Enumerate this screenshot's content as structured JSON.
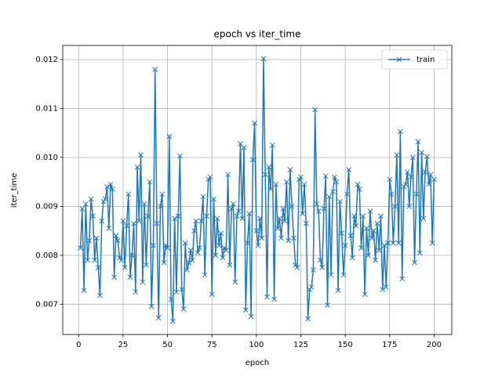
{
  "chart_data": {
    "type": "line",
    "title": "epoch vs iter_time",
    "x_label": "epoch",
    "y_label": "iter_time",
    "x": [
      1,
      2,
      3,
      4,
      5,
      6,
      7,
      8,
      9,
      10,
      11,
      12,
      13,
      14,
      15,
      16,
      17,
      18,
      19,
      20,
      21,
      22,
      23,
      24,
      25,
      26,
      27,
      28,
      29,
      30,
      31,
      32,
      33,
      34,
      35,
      36,
      37,
      38,
      39,
      40,
      41,
      42,
      43,
      44,
      45,
      46,
      47,
      48,
      49,
      50,
      51,
      52,
      53,
      54,
      55,
      56,
      57,
      58,
      59,
      60,
      61,
      62,
      63,
      64,
      65,
      66,
      67,
      68,
      69,
      70,
      71,
      72,
      73,
      74,
      75,
      76,
      77,
      78,
      79,
      80,
      81,
      82,
      83,
      84,
      85,
      86,
      87,
      88,
      89,
      90,
      91,
      92,
      93,
      94,
      95,
      96,
      97,
      98,
      99,
      100,
      101,
      102,
      103,
      104,
      105,
      106,
      107,
      108,
      109,
      110,
      111,
      112,
      113,
      114,
      115,
      116,
      117,
      118,
      119,
      120,
      121,
      122,
      123,
      124,
      125,
      126,
      127,
      128,
      129,
      130,
      131,
      132,
      133,
      134,
      135,
      136,
      137,
      138,
      139,
      140,
      141,
      142,
      143,
      144,
      145,
      146,
      147,
      148,
      149,
      150,
      151,
      152,
      153,
      154,
      155,
      156,
      157,
      158,
      159,
      160,
      161,
      162,
      163,
      164,
      165,
      166,
      167,
      168,
      169,
      170,
      171,
      172,
      173,
      174,
      175,
      176,
      177,
      178,
      179,
      180,
      181,
      182,
      183,
      184,
      185,
      186,
      187,
      188,
      189,
      190,
      191,
      192,
      193,
      194,
      195,
      196,
      197,
      198,
      199,
      200
    ],
    "series": [
      {
        "name": "train",
        "color": "#1f77b4",
        "marker": "x",
        "values": [
          0.00815,
          0.00895,
          0.00728,
          0.00905,
          0.0079,
          0.0083,
          0.00915,
          0.0088,
          0.0079,
          0.00835,
          0.00775,
          0.00718,
          0.0087,
          0.0091,
          0.00915,
          0.0094,
          0.00855,
          0.00945,
          0.00935,
          0.00755,
          0.0084,
          0.0083,
          0.00795,
          0.0079,
          0.0087,
          0.00775,
          0.0086,
          0.00925,
          0.00755,
          0.008,
          0.00865,
          0.00725,
          0.0098,
          0.0087,
          0.01005,
          0.00745,
          0.00905,
          0.0078,
          0.0088,
          0.0095,
          0.00695,
          0.0082,
          0.0118,
          0.00865,
          0.00672,
          0.009,
          0.00925,
          0.00785,
          0.0082,
          0.00815,
          0.01043,
          0.0071,
          0.00665,
          0.00875,
          0.00725,
          0.0088,
          0.01003,
          0.0073,
          0.0069,
          0.00825,
          0.0077,
          0.00785,
          0.0081,
          0.0079,
          0.0085,
          0.0087,
          0.00805,
          0.00815,
          0.0087,
          0.0092,
          0.0076,
          0.0088,
          0.00955,
          0.0096,
          0.0072,
          0.00915,
          0.008,
          0.00875,
          0.0082,
          0.00845,
          0.00795,
          0.00815,
          0.0081,
          0.00965,
          0.0078,
          0.00895,
          0.00905,
          0.00745,
          0.0088,
          0.0089,
          0.01028,
          0.00875,
          0.0102,
          0.00688,
          0.00825,
          0.00885,
          0.00675,
          0.00995,
          0.0107,
          0.0085,
          0.0082,
          0.00875,
          0.00835,
          0.01202,
          0.00965,
          0.00715,
          0.0098,
          0.00935,
          0.01025,
          0.0071,
          0.00945,
          0.00855,
          0.00875,
          0.00835,
          0.00895,
          0.0087,
          0.0095,
          0.0083,
          0.00975,
          0.009,
          0.00835,
          0.0078,
          0.00775,
          0.00955,
          0.0096,
          0.00885,
          0.00945,
          0.00865,
          0.0067,
          0.0073,
          0.00735,
          0.0077,
          0.01098,
          0.00905,
          0.0089,
          0.0079,
          0.00775,
          0.00895,
          0.00962,
          0.00698,
          0.0092,
          0.0076,
          0.0093,
          0.0096,
          0.0095,
          0.00728,
          0.0091,
          0.00845,
          0.0076,
          0.0082,
          0.00925,
          0.00975,
          0.0084,
          0.00795,
          0.0088,
          0.0086,
          0.00945,
          0.00935,
          0.00815,
          0.0088,
          0.0072,
          0.00855,
          0.008,
          0.0089,
          0.00835,
          0.0085,
          0.0079,
          0.00865,
          0.0081,
          0.0088,
          0.0073,
          0.0082,
          0.00735,
          0.00825,
          0.00955,
          0.00925,
          0.00825,
          0.009,
          0.01005,
          0.00825,
          0.01053,
          0.00752,
          0.0094,
          0.00945,
          0.0097,
          0.009,
          0.0096,
          0.01,
          0.00785,
          0.00925,
          0.01032,
          0.00805,
          0.0101,
          0.00875,
          0.0097,
          0.01002,
          0.00945,
          0.00965,
          0.00825,
          0.00955
        ]
      }
    ],
    "xlim": [
      -8.95,
      209.95
    ],
    "ylim": [
      0.00638,
      0.01229
    ],
    "xticks": [
      0,
      25,
      50,
      75,
      100,
      125,
      150,
      175,
      200
    ],
    "yticks": [
      0.007,
      0.008,
      0.009,
      {
        "value": 0.01,
        "label": "0.010"
      },
      0.011,
      0.012
    ],
    "grid": true,
    "legend": "upper right"
  }
}
